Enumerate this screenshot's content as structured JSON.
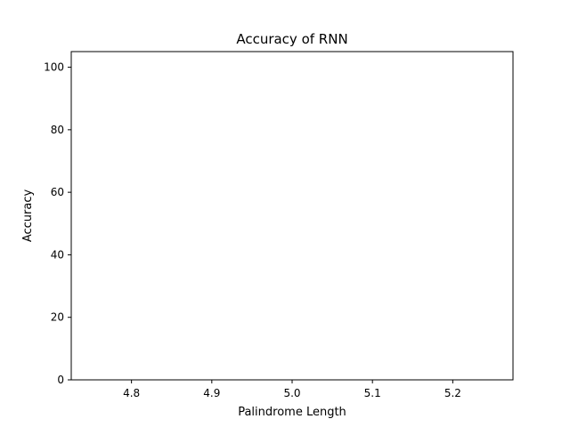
{
  "chart_data": {
    "type": "line",
    "title": "Accuracy of RNN",
    "xlabel": "Palindrome Length",
    "ylabel": "Accuracy",
    "xlim": [
      4.725,
      5.275
    ],
    "ylim": [
      0,
      105
    ],
    "xticks": [
      4.8,
      4.9,
      5.0,
      5.1,
      5.2
    ],
    "xtick_labels": [
      "4.8",
      "4.9",
      "5.0",
      "5.1",
      "5.2"
    ],
    "yticks": [
      0,
      20,
      40,
      60,
      80,
      100
    ],
    "ytick_labels": [
      "0",
      "20",
      "40",
      "60",
      "80",
      "100"
    ],
    "grid": false,
    "series": []
  }
}
